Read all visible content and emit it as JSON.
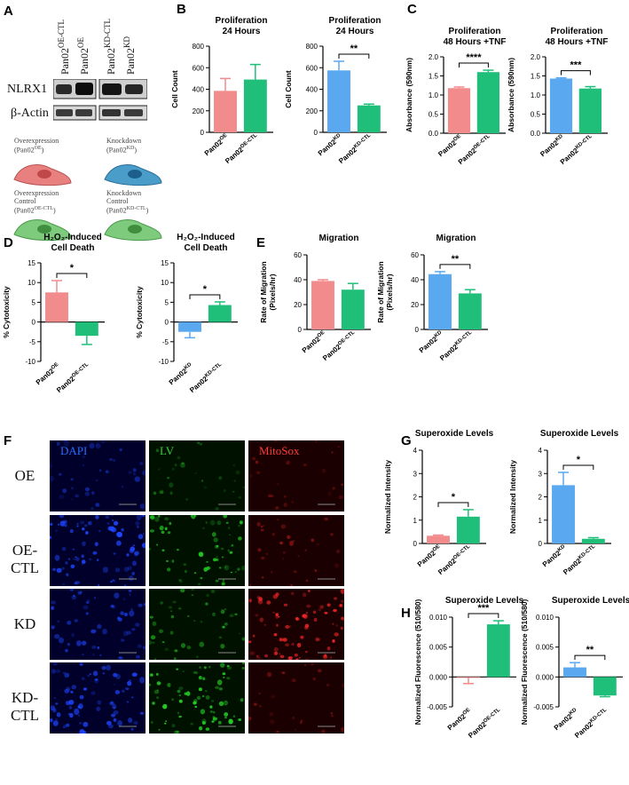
{
  "panels": {
    "A": "A",
    "B": "B",
    "C": "C",
    "D": "D",
    "E": "E",
    "F": "F",
    "G": "G",
    "H": "H"
  },
  "blot": {
    "lanes": [
      {
        "base": "Pan02",
        "sup": "OE-CTL"
      },
      {
        "base": "Pan02",
        "sup": "OE"
      },
      {
        "base": "Pan02",
        "sup": "KD-CTL"
      },
      {
        "base": "Pan02",
        "sup": "KD"
      }
    ],
    "rows": [
      "NLRX1",
      "β-Actin"
    ]
  },
  "cells": [
    {
      "line1": "Overexpression",
      "line2": "(Pan02",
      "sup": "OE",
      "close": ")",
      "color": "#e87e7e"
    },
    {
      "line1": "Knockdown",
      "line2": "(Pan02",
      "sup": "KD",
      "close": ")",
      "color": "#3d8fbf"
    },
    {
      "line1": "Overexpression",
      "line1b": "Control",
      "line2": "(Pan02",
      "sup": "OE-CTL",
      "close": ")",
      "color": "#6bbf6b"
    },
    {
      "line1": "Knockdown",
      "line1b": "Control",
      "line2": "(Pan02",
      "sup": "KD-CTL",
      "close": ")",
      "color": "#6bbf6b"
    }
  ],
  "colors": {
    "red": "#f28b8b",
    "blue": "#5aa9f0",
    "green": "#1fbf7a"
  },
  "microscopy": {
    "channels": [
      {
        "label": "DAPI",
        "color": "#2b6bff"
      },
      {
        "label": "LV",
        "color": "#36d436"
      },
      {
        "label": "MitoSox",
        "color": "#ff3a3a"
      }
    ],
    "rows": [
      "OE",
      "OE-CTL",
      "KD",
      "KD-CTL"
    ],
    "intensity": [
      [
        0.25,
        0.12,
        0.05
      ],
      [
        0.9,
        0.7,
        0.15
      ],
      [
        0.55,
        0.35,
        0.8
      ],
      [
        0.8,
        0.85,
        0.08
      ]
    ]
  },
  "chart_data": [
    {
      "id": "B1",
      "type": "bar",
      "title": [
        "Proliferation",
        "24 Hours"
      ],
      "ylabel": "Cell Count",
      "ylim": [
        0,
        800
      ],
      "yticks": [
        0,
        200,
        400,
        600,
        800
      ],
      "ytick_labels": [
        "0",
        "200",
        "400",
        "600",
        "800"
      ],
      "categories": [
        {
          "base": "Pan02",
          "sup": "OE"
        },
        {
          "base": "Pan02",
          "sup": "OE-CTL"
        }
      ],
      "values": [
        385,
        490
      ],
      "errors": [
        115,
        140
      ],
      "colors": [
        "red",
        "green"
      ],
      "sig": null
    },
    {
      "id": "B2",
      "type": "bar",
      "title": [
        "Proliferation",
        "24 Hours"
      ],
      "ylabel": "Cell Count",
      "ylim": [
        0,
        800
      ],
      "yticks": [
        0,
        200,
        400,
        600,
        800
      ],
      "ytick_labels": [
        "0",
        "200",
        "400",
        "600",
        "800"
      ],
      "categories": [
        {
          "base": "Pan02",
          "sup": "KD"
        },
        {
          "base": "Pan02",
          "sup": "KD-CTL"
        }
      ],
      "values": [
        575,
        250
      ],
      "errors": [
        85,
        12
      ],
      "colors": [
        "blue",
        "green"
      ],
      "sig": "**"
    },
    {
      "id": "C1",
      "type": "bar",
      "title": [
        "Proliferation",
        "48 Hours +TNF"
      ],
      "ylabel": "Absorbance (590nm)",
      "ylim": [
        0,
        2.0
      ],
      "yticks": [
        0,
        0.5,
        1.0,
        1.5,
        2.0
      ],
      "ytick_labels": [
        "0.0",
        "0.5",
        "1.0",
        "1.5",
        "2.0"
      ],
      "categories": [
        {
          "base": "Pan02",
          "sup": "OE"
        },
        {
          "base": "Pan02",
          "sup": "OE-CTL"
        }
      ],
      "values": [
        1.18,
        1.6
      ],
      "errors": [
        0.03,
        0.05
      ],
      "colors": [
        "red",
        "green"
      ],
      "sig": "****"
    },
    {
      "id": "C2",
      "type": "bar",
      "title": [
        "Proliferation",
        "48 Hours +TNF"
      ],
      "ylabel": "Absorbance (590nm)",
      "ylim": [
        0,
        2.0
      ],
      "yticks": [
        0,
        0.5,
        1.0,
        1.5,
        2.0
      ],
      "ytick_labels": [
        "0.0",
        "0.5",
        "1.0",
        "1.5",
        "2.0"
      ],
      "categories": [
        {
          "base": "Pan02",
          "sup": "KD"
        },
        {
          "base": "Pan02",
          "sup": "KD-CTL"
        }
      ],
      "values": [
        1.43,
        1.17
      ],
      "errors": [
        0.02,
        0.05
      ],
      "colors": [
        "blue",
        "green"
      ],
      "sig": "***"
    },
    {
      "id": "D1",
      "type": "bar",
      "title": [
        "H₂O₂-Induced",
        "Cell Death"
      ],
      "ylabel": "% Cytotoxicity",
      "ylim": [
        -10,
        15
      ],
      "yticks": [
        -10,
        -5,
        0,
        5,
        10,
        15
      ],
      "ytick_labels": [
        "-10",
        "-5",
        "0",
        "5",
        "10",
        "15"
      ],
      "categories": [
        {
          "base": "Pan02",
          "sup": "OE"
        },
        {
          "base": "Pan02",
          "sup": "OE-CTL"
        }
      ],
      "values": [
        7.5,
        -3.5
      ],
      "errors": [
        3,
        2.2
      ],
      "colors": [
        "red",
        "green"
      ],
      "sig": "*"
    },
    {
      "id": "D2",
      "type": "bar",
      "title": [
        "H₂O₂-Induced",
        "Cell Death"
      ],
      "ylabel": "% Cytotoxicity",
      "ylim": [
        -10,
        15
      ],
      "yticks": [
        -10,
        -5,
        0,
        5,
        10,
        15
      ],
      "ytick_labels": [
        "-10",
        "-5",
        "0",
        "5",
        "10",
        "15"
      ],
      "categories": [
        {
          "base": "Pan02",
          "sup": "KD"
        },
        {
          "base": "Pan02",
          "sup": "KD-CTL"
        }
      ],
      "values": [
        -2.5,
        4.3
      ],
      "errors": [
        1.5,
        0.8
      ],
      "colors": [
        "blue",
        "green"
      ],
      "sig": "*"
    },
    {
      "id": "E1",
      "type": "bar",
      "title": [
        "Migration"
      ],
      "ylabel": [
        "Rate of Migration",
        "(Pixels/hr)"
      ],
      "ylim": [
        0,
        60
      ],
      "yticks": [
        0,
        20,
        40,
        60
      ],
      "ytick_labels": [
        "0",
        "20",
        "40",
        "60"
      ],
      "categories": [
        {
          "base": "Pan02",
          "sup": "OE"
        },
        {
          "base": "Pan02",
          "sup": "OE-CTL"
        }
      ],
      "values": [
        39,
        32
      ],
      "errors": [
        1,
        5
      ],
      "colors": [
        "red",
        "green"
      ],
      "sig": null
    },
    {
      "id": "E2",
      "type": "bar",
      "title": [
        "Migration"
      ],
      "ylabel": [
        "Rate of Migration",
        "(Pixels/hr)"
      ],
      "ylim": [
        0,
        60
      ],
      "yticks": [
        0,
        20,
        40,
        60
      ],
      "ytick_labels": [
        "0",
        "20",
        "40",
        "60"
      ],
      "categories": [
        {
          "base": "Pan02",
          "sup": "KD"
        },
        {
          "base": "Pan02",
          "sup": "KD-CTL"
        }
      ],
      "values": [
        44.5,
        29
      ],
      "errors": [
        2,
        3
      ],
      "colors": [
        "blue",
        "green"
      ],
      "sig": "**"
    },
    {
      "id": "G1",
      "type": "bar",
      "title": [
        "Superoxide Levels"
      ],
      "ylabel": "Normalized Intensity",
      "ylim": [
        0,
        4
      ],
      "yticks": [
        0,
        1,
        2,
        3,
        4
      ],
      "ytick_labels": [
        "0",
        "1",
        "2",
        "3",
        "4"
      ],
      "categories": [
        {
          "base": "Pan02",
          "sup": "OE"
        },
        {
          "base": "Pan02",
          "sup": "OE-CTL"
        }
      ],
      "values": [
        0.33,
        1.15
      ],
      "errors": [
        0.03,
        0.3
      ],
      "colors": [
        "red",
        "green"
      ],
      "sig": "*"
    },
    {
      "id": "G2",
      "type": "bar",
      "title": [
        "Superoxide Levels"
      ],
      "ylabel": "Normalized Intensity",
      "ylim": [
        0,
        4
      ],
      "yticks": [
        0,
        1,
        2,
        3,
        4
      ],
      "ytick_labels": [
        "0",
        "1",
        "2",
        "3",
        "4"
      ],
      "categories": [
        {
          "base": "Pan02",
          "sup": "KD"
        },
        {
          "base": "Pan02",
          "sup": "KD-CTL"
        }
      ],
      "values": [
        2.5,
        0.2
      ],
      "errors": [
        0.55,
        0.05
      ],
      "colors": [
        "blue",
        "green"
      ],
      "sig": "*"
    },
    {
      "id": "H1",
      "type": "bar",
      "title": [
        "Superoxide Levels"
      ],
      "ylabel": "Normalized Fluorescence (510/580)",
      "ylim": [
        -0.005,
        0.01
      ],
      "yticks": [
        -0.005,
        0,
        0.005,
        0.01
      ],
      "ytick_labels": [
        "-0.005",
        "0.000",
        "0.005",
        "0.010"
      ],
      "categories": [
        {
          "base": "Pan02",
          "sup": "OE"
        },
        {
          "base": "Pan02",
          "sup": "OE-CTL"
        }
      ],
      "values": [
        -0.0001,
        0.0088
      ],
      "errors": [
        0.001,
        0.0006
      ],
      "colors": [
        "red",
        "green"
      ],
      "sig": "***"
    },
    {
      "id": "H2",
      "type": "bar",
      "title": [
        "Superoxide Levels"
      ],
      "ylabel": "Normalized Fluorescence (510/580)",
      "ylim": [
        -0.005,
        0.01
      ],
      "yticks": [
        -0.005,
        0,
        0.005,
        0.01
      ],
      "ytick_labels": [
        "-0.005",
        "0.000",
        "0.005",
        "0.010"
      ],
      "categories": [
        {
          "base": "Pan02",
          "sup": "KD"
        },
        {
          "base": "Pan02",
          "sup": "KD-CTL"
        }
      ],
      "values": [
        0.0016,
        -0.0031
      ],
      "errors": [
        0.0008,
        0.0002
      ],
      "colors": [
        "blue",
        "green"
      ],
      "sig": "**"
    }
  ]
}
